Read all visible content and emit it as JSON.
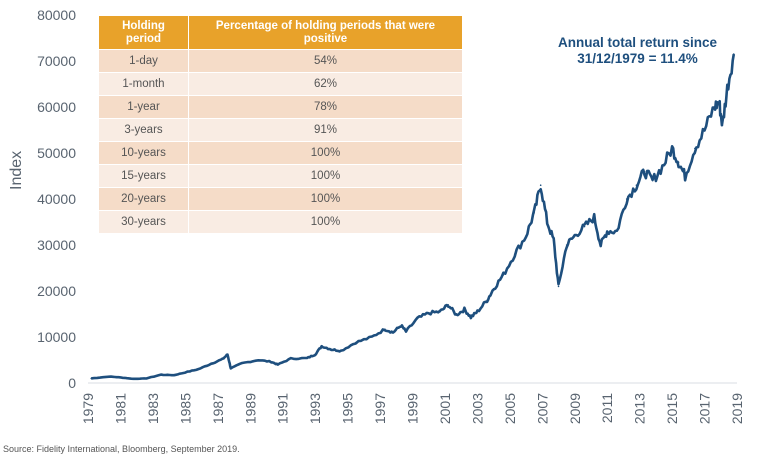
{
  "chart_data": {
    "type": "line",
    "ylabel": "Index",
    "xlabel": "",
    "ylim": [
      0,
      80000
    ],
    "xlim": [
      1979,
      2019
    ],
    "yticks": [
      "0",
      "10000",
      "20000",
      "30000",
      "40000",
      "50000",
      "60000",
      "70000",
      "80000"
    ],
    "xticks": [
      "1979",
      "1981",
      "1983",
      "1985",
      "1987",
      "1989",
      "1991",
      "1993",
      "1995",
      "1997",
      "1999",
      "2001",
      "2003",
      "2005",
      "2007",
      "2009",
      "2011",
      "2013",
      "2015",
      "2017",
      "2019"
    ],
    "grid": false,
    "line_color": "#1e4f7e",
    "series": [
      {
        "x": [
          1979.2,
          1980.3,
          1981.0,
          1981.8,
          1982.6,
          1983.5,
          1984.3,
          1985.0,
          1985.8,
          1986.6,
          1987.3,
          1987.6,
          1987.8,
          1988.5,
          1989.5,
          1990.3,
          1990.7,
          1991.5,
          1992.5,
          1993.0,
          1993.4,
          1994.0,
          1994.6,
          1995.5,
          1996.5,
          1997.3,
          1997.8,
          1998.3,
          1998.6,
          1999.3,
          2000.0,
          2000.7,
          2001.2,
          2001.7,
          2002.2,
          2002.6,
          2003.0,
          2003.6,
          2004.0,
          2004.6,
          2005.3,
          2006.0,
          2006.5,
          2006.9,
          2007.3,
          2007.7,
          2008.0,
          2008.5,
          2009.0,
          2009.6,
          2010.2,
          2010.6,
          2011.0,
          2011.6,
          2012.2,
          2012.8,
          2013.3,
          2013.8,
          2014.4,
          2015.0,
          2015.4,
          2015.8,
          2016.4,
          2017.0,
          2017.6,
          2017.9,
          2018.1,
          2018.4,
          2018.8
        ],
        "y": [
          1000,
          1400,
          1200,
          900,
          1000,
          1800,
          1700,
          2300,
          3000,
          4200,
          5200,
          6200,
          3200,
          4300,
          5000,
          4600,
          4000,
          5300,
          5400,
          6200,
          8000,
          7300,
          7000,
          8800,
          10000,
          11700,
          11000,
          12500,
          11200,
          14000,
          15200,
          15500,
          17000,
          14800,
          16000,
          14300,
          15500,
          18000,
          20500,
          23500,
          28000,
          32000,
          37000,
          43000,
          35000,
          31000,
          21000,
          30000,
          32000,
          34000,
          36000,
          30000,
          33000,
          33000,
          40000,
          43000,
          46000,
          44000,
          47000,
          51000,
          48000,
          45000,
          51000,
          55000,
          60000,
          61000,
          56000,
          64000,
          71500
        ]
      }
    ]
  },
  "annotation": {
    "line1": "Annual total return since",
    "line2": "31/12/1979 = 11.4%"
  },
  "table": {
    "headers": [
      "Holding period",
      "Percentage of holding periods that were positive"
    ],
    "rows": [
      [
        "1-day",
        "54%"
      ],
      [
        "1-month",
        "62%"
      ],
      [
        "1-year",
        "78%"
      ],
      [
        "3-years",
        "91%"
      ],
      [
        "10-years",
        "100%"
      ],
      [
        "15-years",
        "100%"
      ],
      [
        "20-years",
        "100%"
      ],
      [
        "30-years",
        "100%"
      ]
    ]
  },
  "source": "Source: Fidelity International, Bloomberg, September 2019."
}
